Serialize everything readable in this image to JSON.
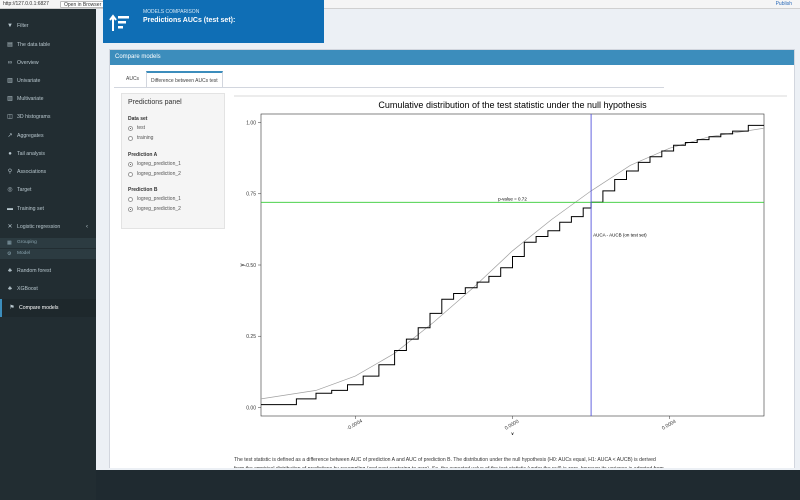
{
  "browser": {
    "url": "http://127.0.0.1:6827",
    "open_label": "Open in Browser",
    "publish_label": "Publish"
  },
  "sidebar": {
    "items": [
      {
        "label": "Filter",
        "icon": "filter-icon"
      },
      {
        "label": "The data table",
        "icon": "table-icon"
      },
      {
        "label": "Overview",
        "icon": "binoculars-icon"
      },
      {
        "label": "Univariate",
        "icon": "bar-chart-icon"
      },
      {
        "label": "Multivariate",
        "icon": "bar-chart-icon"
      },
      {
        "label": "3D histograms",
        "icon": "cube-icon"
      },
      {
        "label": "Aggregates",
        "icon": "line-chart-icon"
      },
      {
        "label": "Tail analysis",
        "icon": "paw-icon"
      },
      {
        "label": "Associations",
        "icon": "network-icon"
      },
      {
        "label": "Target",
        "icon": "target-icon"
      },
      {
        "label": "Training set",
        "icon": "training-icon"
      },
      {
        "label": "Logistic regression",
        "icon": "math-icon"
      },
      {
        "label": "Random forest",
        "icon": "tree-icon"
      },
      {
        "label": "XGBoost",
        "icon": "tree-icon"
      },
      {
        "label": "Compare models",
        "icon": "flag-icon"
      }
    ],
    "subitems": [
      {
        "label": "Grouping",
        "icon": "grid-icon"
      },
      {
        "label": "Model",
        "icon": "sliders-icon"
      }
    ]
  },
  "header": {
    "subtitle": "MODELS COMPARISON",
    "title": "Predictions AUCs (test set):"
  },
  "card": {
    "title": "Compare models",
    "tabs": [
      {
        "label": "AUCs"
      },
      {
        "label": "Difference between AUCs test"
      }
    ]
  },
  "panel": {
    "title": "Predictions panel",
    "dataset_label": "Data set",
    "dataset_options": [
      "test",
      "training"
    ],
    "predA_label": "Prediction A",
    "predA_options": [
      "logreg_prediction_1",
      "logreg_prediction_2"
    ],
    "predB_label": "Prediction B",
    "predB_options": [
      "logreg_prediction_1",
      "logreg_prediction_2"
    ]
  },
  "chart_data": {
    "type": "line",
    "title": "Cumulative distribution of the test statistic under the null hypothesis",
    "xlabel": "x",
    "ylabel": "y",
    "xlim": [
      -0.00064,
      0.00064
    ],
    "ylim": [
      -0.03,
      1.03
    ],
    "x_ticks": [
      -0.0004,
      0.0,
      0.0004
    ],
    "x_tick_labels": [
      "-0.0004",
      "0.0000",
      "0.0004"
    ],
    "y_ticks": [
      0.0,
      0.25,
      0.5,
      0.75,
      1.0
    ],
    "y_tick_labels": [
      "0.00",
      "0.25",
      "0.50",
      "0.75",
      "1.00"
    ],
    "p_value_line": 0.72,
    "p_value_label": "p-value = 0.72",
    "observed_x": 0.0002,
    "observed_label": "AUCA - AUCB (on test set)",
    "empirical_color": "#000000",
    "normal_color": "#a0a0a0",
    "pvalue_color": "#33cc33",
    "observed_color": "#5555dd",
    "series": [
      {
        "name": "empirical",
        "x": [
          -0.00064,
          -0.0006,
          -0.00055,
          -0.0005,
          -0.00046,
          -0.00042,
          -0.00038,
          -0.00034,
          -0.0003,
          -0.00027,
          -0.00024,
          -0.00021,
          -0.00018,
          -0.00015,
          -0.00012,
          -9e-05,
          -6e-05,
          -3e-05,
          0.0,
          3e-05,
          6e-05,
          9e-05,
          0.00012,
          0.00015,
          0.00018,
          0.0002,
          0.00023,
          0.00026,
          0.00029,
          0.00032,
          0.00035,
          0.00038,
          0.00041,
          0.00044,
          0.00047,
          0.0005,
          0.00053,
          0.00056,
          0.0006,
          0.00064
        ],
        "y": [
          0.01,
          0.01,
          0.03,
          0.05,
          0.06,
          0.08,
          0.11,
          0.15,
          0.2,
          0.24,
          0.28,
          0.33,
          0.38,
          0.4,
          0.42,
          0.44,
          0.46,
          0.49,
          0.53,
          0.58,
          0.6,
          0.62,
          0.65,
          0.67,
          0.7,
          0.72,
          0.76,
          0.8,
          0.83,
          0.86,
          0.88,
          0.9,
          0.92,
          0.93,
          0.94,
          0.95,
          0.96,
          0.97,
          0.99,
          0.99
        ]
      },
      {
        "name": "normal",
        "x": [
          -0.00064,
          -0.0005,
          -0.0004,
          -0.0003,
          -0.0002,
          -0.0001,
          0.0,
          0.0001,
          0.0002,
          0.0003,
          0.0004,
          0.0005,
          0.00064
        ],
        "y": [
          0.03,
          0.06,
          0.11,
          0.19,
          0.3,
          0.42,
          0.55,
          0.66,
          0.76,
          0.85,
          0.91,
          0.95,
          0.98
        ]
      }
    ]
  },
  "description": "The test statistic is defined as a difference between AUC of prediction A and AUC of prediction B. The distribution under the null hypothesis (H0: AUCs equal, H1: AUCA < AUCB) is derived from the empirical distribution of predictions by resampling (and next centering to zero). So, the expected value of the test statistic (under the null) is zero, however its variance is adopted from the data. No approximation by normal distribution is used while determining p-value. Yet, normal distribution usually fits well to the empirical one (compare black and gray curves in the plot)."
}
